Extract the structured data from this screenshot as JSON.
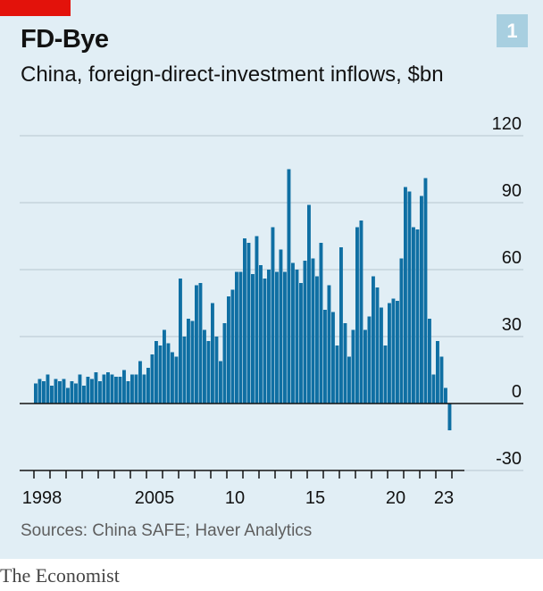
{
  "header": {
    "title": "FD-Bye",
    "subtitle": "China, foreign-direct-investment inflows, $bn",
    "chart_number": "1"
  },
  "footer": {
    "source": "Sources: China SAFE; Haver Analytics",
    "brand": "The Economist"
  },
  "colors": {
    "bar": "#0f6fa3",
    "accent": "#e3120b",
    "background": "#e1eef5",
    "badge": "#a8cfe0"
  },
  "chart_data": {
    "type": "bar",
    "title": "FD-Bye",
    "subtitle": "China, foreign-direct-investment inflows, $bn",
    "xlabel": "",
    "ylabel": "",
    "ylim": [
      -30,
      120
    ],
    "y_ticks": [
      -30,
      0,
      30,
      60,
      90,
      120
    ],
    "y_tick_labels": [
      "-30",
      "0",
      "30",
      "60",
      "90",
      "120"
    ],
    "x_ticks": [
      {
        "label": "1998",
        "year": 1998
      },
      {
        "label": "2005",
        "year": 2005
      },
      {
        "label": "10",
        "year": 2010
      },
      {
        "label": "15",
        "year": 2015
      },
      {
        "label": "20",
        "year": 2020
      },
      {
        "label": "23",
        "year": 2023
      }
    ],
    "grid": true,
    "frequency": "quarterly",
    "start": "1998-Q1",
    "end": "2023-Q4",
    "values": [
      9,
      11,
      10,
      13,
      8,
      11,
      10,
      11,
      7,
      10,
      9,
      13,
      8,
      12,
      11,
      14,
      10,
      13,
      14,
      13,
      12,
      12,
      15,
      10,
      13,
      13,
      19,
      13,
      16,
      22,
      28,
      26,
      33,
      27,
      23,
      21,
      56,
      30,
      38,
      37,
      53,
      54,
      33,
      28,
      45,
      30,
      19,
      36,
      48,
      51,
      59,
      59,
      74,
      72,
      58,
      75,
      62,
      56,
      60,
      79,
      59,
      69,
      59,
      105,
      63,
      60,
      54,
      64,
      89,
      65,
      57,
      72,
      42,
      53,
      41,
      26,
      70,
      36,
      21,
      33,
      79,
      82,
      33,
      39,
      57,
      52,
      43,
      26,
      45,
      47,
      46,
      65,
      97,
      95,
      79,
      78,
      93,
      101,
      38,
      13,
      28,
      21,
      7,
      -12
    ]
  }
}
